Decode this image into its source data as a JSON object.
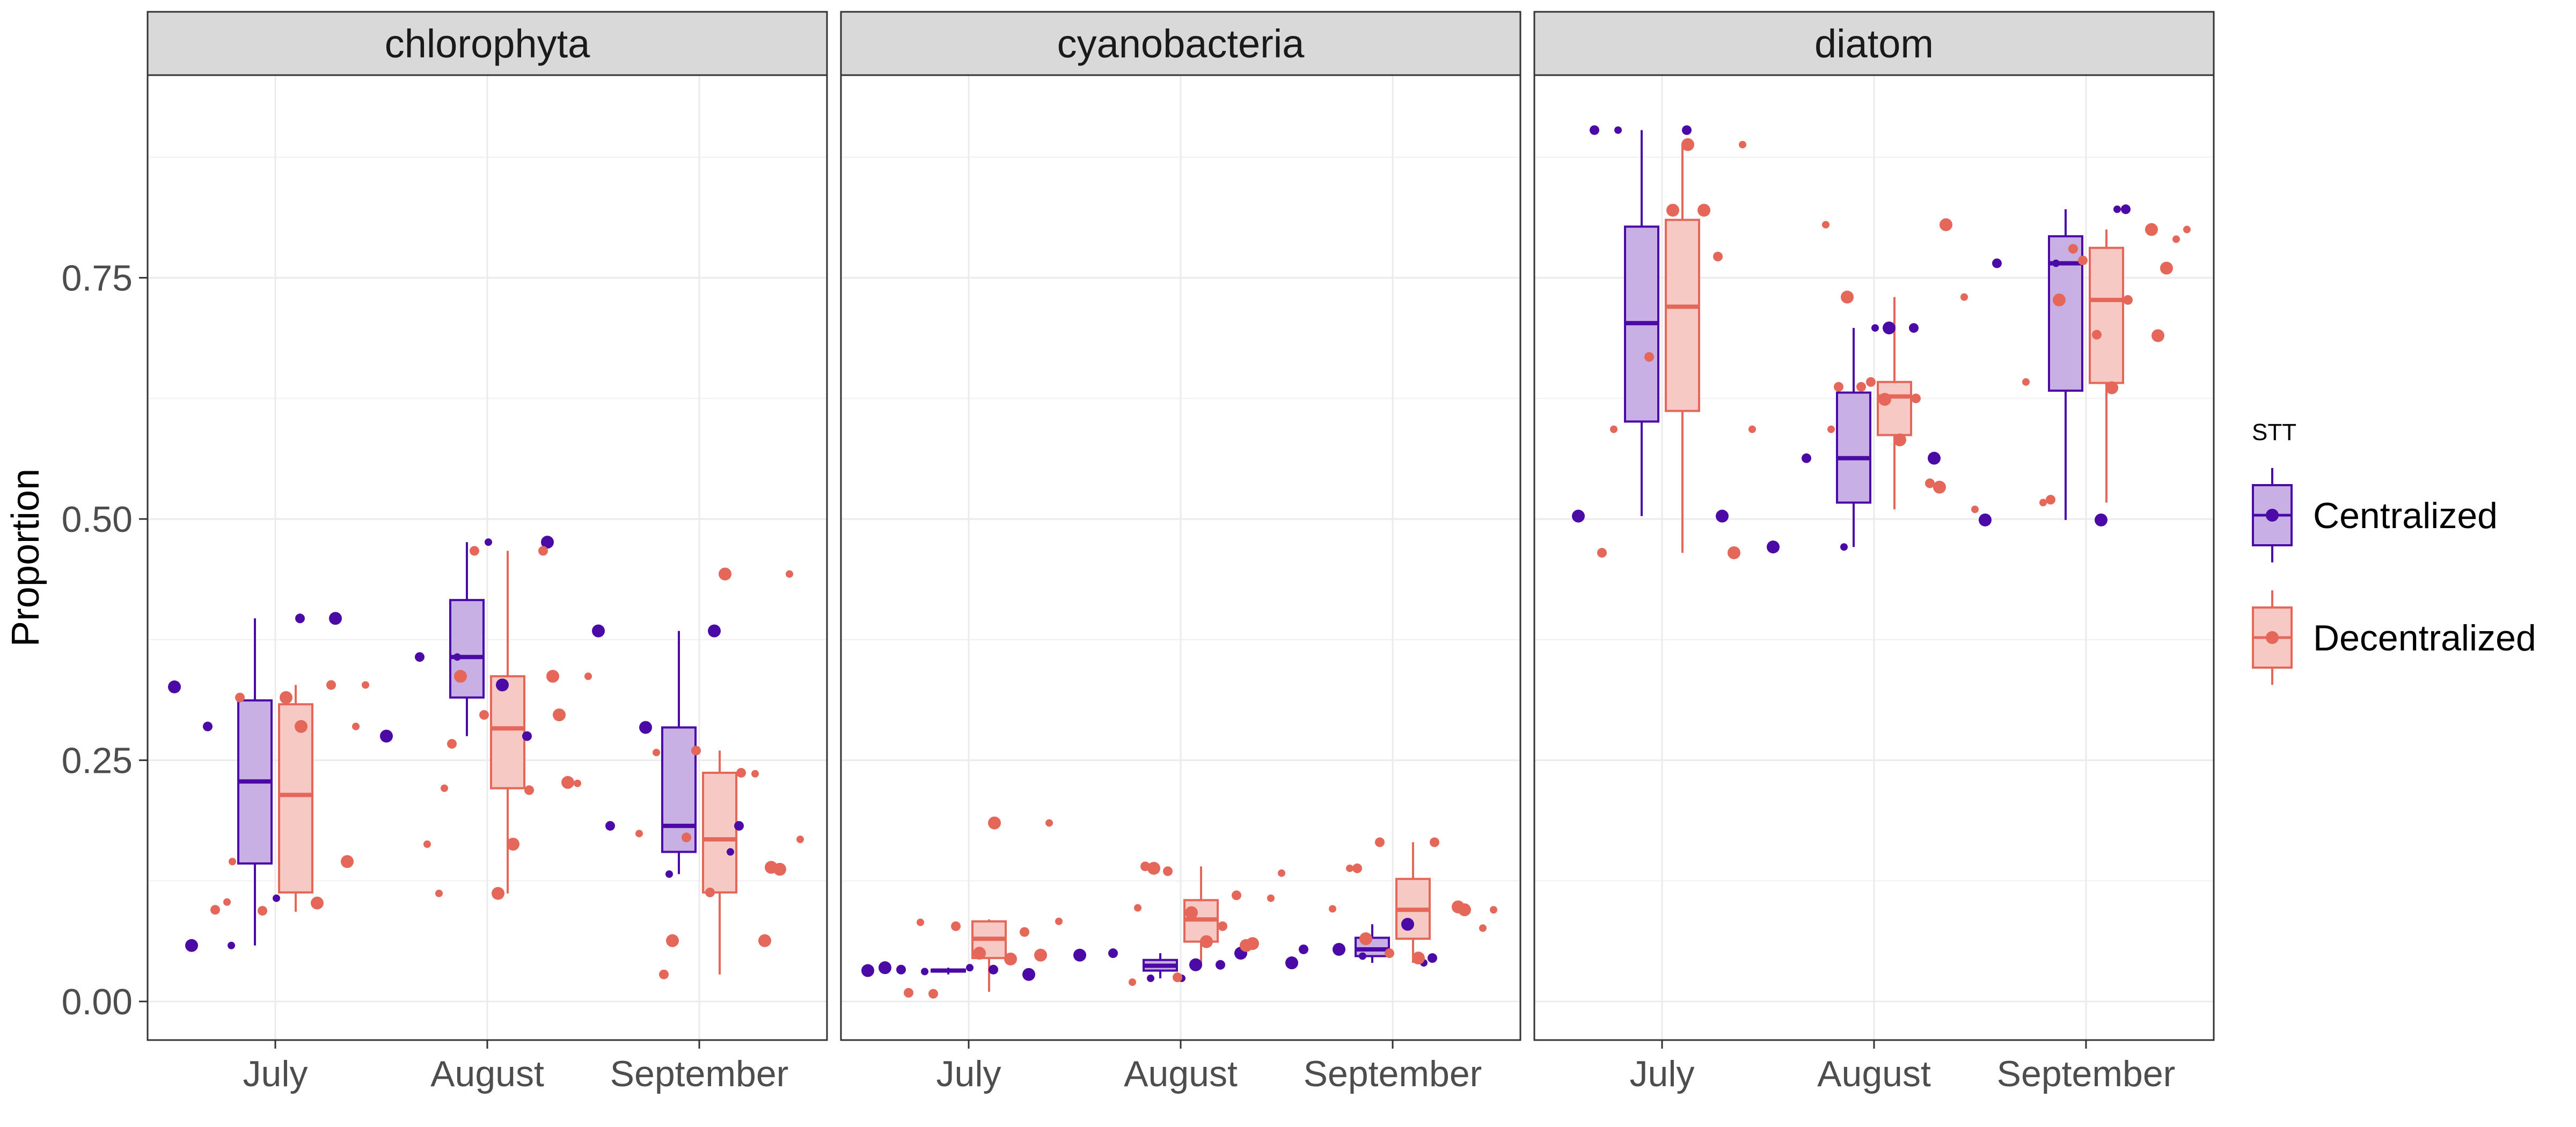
{
  "chart_data": {
    "type": "boxplot",
    "title": "",
    "xlabel": "",
    "ylabel": "Proportion",
    "ylim": [
      -0.04,
      0.96
    ],
    "yticks": [
      0,
      0.25,
      0.5,
      0.75
    ],
    "ytick_labels": [
      "0.00",
      "0.25",
      "0.50",
      "0.75"
    ],
    "grid": true,
    "categories": [
      "July",
      "August",
      "September"
    ],
    "legend": {
      "title": "STT",
      "position": "right",
      "entries": [
        "Centralized",
        "Decentralized"
      ]
    },
    "colors": {
      "Centralized": {
        "line": "#4B0AA6",
        "fill": "#C8B0E4"
      },
      "Decentralized": {
        "line": "#E4675A",
        "fill": "#F6C9C4"
      }
    },
    "facets": [
      {
        "name": "chlorophyta",
        "series": [
          {
            "name": "Centralized",
            "boxes": [
              {
                "q1": 0.143,
                "median": 0.228,
                "q3": 0.312,
                "lo": 0.058,
                "hi": 0.397
              },
              {
                "q1": 0.315,
                "median": 0.357,
                "q3": 0.416,
                "lo": 0.275,
                "hi": 0.476
              },
              {
                "q1": 0.155,
                "median": 0.182,
                "q3": 0.284,
                "lo": 0.132,
                "hi": 0.384
              }
            ],
            "points": [
              [
                0.058,
                0.397,
                0.058,
                0.397,
                0.285,
                0.107,
                0.326
              ],
              [
                0.476,
                0.357,
                0.476,
                0.275,
                0.275,
                0.357,
                0.328
              ],
              [
                0.384,
                0.182,
                0.132,
                0.384,
                0.182,
                0.155,
                0.284
              ]
            ]
          },
          {
            "name": "Decentralized",
            "boxes": [
              {
                "q1": 0.113,
                "median": 0.214,
                "q3": 0.308,
                "lo": 0.093,
                "hi": 0.328
              },
              {
                "q1": 0.221,
                "median": 0.283,
                "q3": 0.337,
                "lo": 0.112,
                "hi": 0.467
              },
              {
                "q1": 0.113,
                "median": 0.168,
                "q3": 0.237,
                "lo": 0.028,
                "hi": 0.26
              }
            ],
            "points": [
              [
                0.102,
                0.095,
                0.285,
                0.315,
                0.328,
                0.103,
                0.145,
                0.094,
                0.328,
                0.285,
                0.315,
                0.145
              ],
              [
                0.112,
                0.467,
                0.112,
                0.297,
                0.467,
                0.226,
                0.163,
                0.267,
                0.221,
                0.337,
                0.297,
                0.337,
                0.337,
                0.219,
                0.163,
                0.227
              ],
              [
                0.139,
                0.17,
                0.443,
                0.443,
                0.028,
                0.258,
                0.063,
                0.26,
                0.168,
                0.063,
                0.237,
                0.174,
                0.137,
                0.113,
                0.236
              ]
            ]
          }
        ]
      },
      {
        "name": "cyanobacteria",
        "series": [
          {
            "name": "Centralized",
            "boxes": [
              {
                "q1": 0.031,
                "median": 0.032,
                "q3": 0.033,
                "lo": 0.028,
                "hi": 0.035
              },
              {
                "q1": 0.032,
                "median": 0.037,
                "q3": 0.043,
                "lo": 0.024,
                "hi": 0.05
              },
              {
                "q1": 0.047,
                "median": 0.054,
                "q3": 0.066,
                "lo": 0.04,
                "hi": 0.08
              }
            ],
            "points": [
              [
                0.035,
                0.033,
                0.031,
                0.028,
                0.033,
                0.035,
                0.032
              ],
              [
                0.05,
                0.05,
                0.024,
                0.048,
                0.038,
                0.024,
                0.038
              ],
              [
                0.04,
                0.045,
                0.047,
                0.08,
                0.054,
                0.04,
                0.054
              ]
            ]
          },
          {
            "name": "Decentralized",
            "boxes": [
              {
                "q1": 0.045,
                "median": 0.065,
                "q3": 0.083,
                "lo": 0.01,
                "hi": 0.085
              },
              {
                "q1": 0.062,
                "median": 0.085,
                "q3": 0.105,
                "lo": 0.038,
                "hi": 0.14
              },
              {
                "q1": 0.065,
                "median": 0.095,
                "q3": 0.127,
                "lo": 0.04,
                "hi": 0.165
              }
            ],
            "points": [
              [
                0.044,
                0.009,
                0.185,
                0.05,
                0.072,
                0.082,
                0.048,
                0.078,
                0.083,
                0.185,
                0.008
              ],
              [
                0.092,
                0.11,
                0.02,
                0.06,
                0.135,
                0.107,
                0.062,
                0.14,
                0.097,
                0.058,
                0.025,
                0.133,
                0.138,
                0.078
              ],
              [
                0.095,
                0.165,
                0.076,
                0.045,
                0.138,
                0.138,
                0.098,
                0.05,
                0.095,
                0.065,
                0.165,
                0.096
              ]
            ]
          }
        ]
      },
      {
        "name": "diatom",
        "series": [
          {
            "name": "Centralized",
            "boxes": [
              {
                "q1": 0.601,
                "median": 0.703,
                "q3": 0.803,
                "lo": 0.503,
                "hi": 0.903
              },
              {
                "q1": 0.517,
                "median": 0.563,
                "q3": 0.631,
                "lo": 0.471,
                "hi": 0.698
              },
              {
                "q1": 0.633,
                "median": 0.765,
                "q3": 0.793,
                "lo": 0.499,
                "hi": 0.821
              }
            ],
            "points": [
              [
                0.503,
                0.903,
                0.903,
                0.503,
                0.903
              ],
              [
                0.563,
                0.563,
                0.698,
                0.471,
                0.698,
                0.471,
                0.698
              ],
              [
                0.499,
                0.821,
                0.765,
                0.499,
                0.765,
                0.821
              ]
            ]
          },
          {
            "name": "Decentralized",
            "boxes": [
              {
                "q1": 0.612,
                "median": 0.72,
                "q3": 0.81,
                "lo": 0.465,
                "hi": 0.888
              },
              {
                "q1": 0.587,
                "median": 0.627,
                "q3": 0.642,
                "lo": 0.51,
                "hi": 0.73
              },
              {
                "q1": 0.641,
                "median": 0.727,
                "q3": 0.781,
                "lo": 0.517,
                "hi": 0.8
              }
            ],
            "points": [
              [
                0.82,
                0.465,
                0.888,
                0.82,
                0.772,
                0.593,
                0.465,
                0.668,
                0.593,
                0.888
              ],
              [
                0.624,
                0.537,
                0.805,
                0.805,
                0.637,
                0.73,
                0.582,
                0.637,
                0.593,
                0.533,
                0.642,
                0.51,
                0.73,
                0.625
              ],
              [
                0.69,
                0.78,
                0.79,
                0.636,
                0.52,
                0.517,
                0.8,
                0.768,
                0.8,
                0.727,
                0.727,
                0.642,
                0.76,
                0.691
              ]
            ]
          }
        ]
      }
    ]
  }
}
